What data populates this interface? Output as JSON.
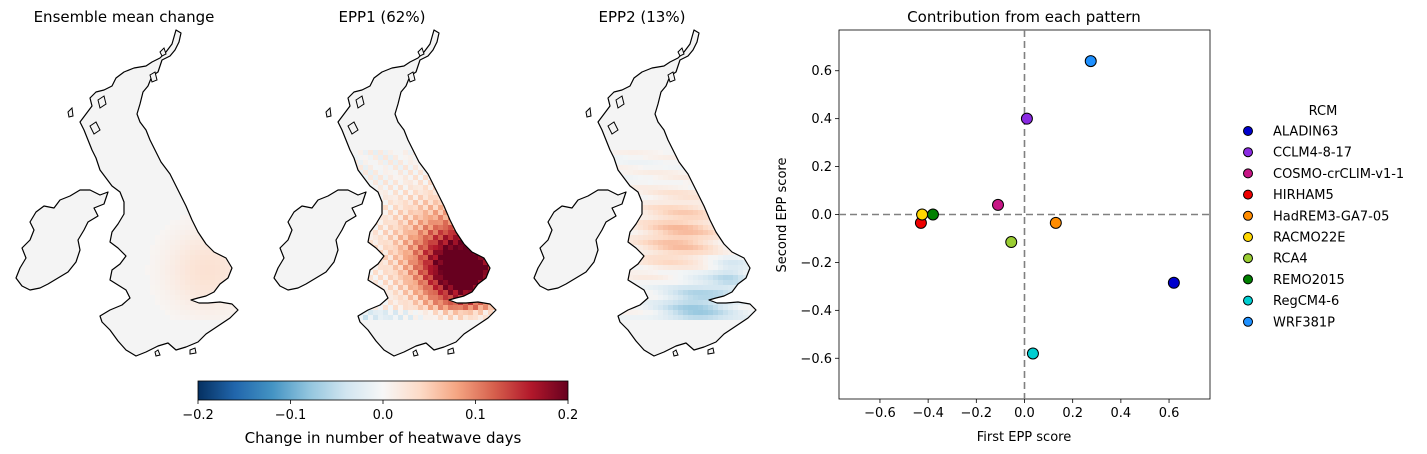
{
  "maps": [
    {
      "title": "Ensemble mean change",
      "pattern": "mean"
    },
    {
      "title": "EPP1 (62%)",
      "pattern": "epp1"
    },
    {
      "title": "EPP2 (13%)",
      "pattern": "epp2"
    }
  ],
  "colorbar": {
    "label": "Change in number of heatwave days",
    "ticks": [
      "−0.2",
      "−0.1",
      "0.0",
      "0.1",
      "0.2"
    ],
    "vmin": -0.2,
    "vmax": 0.2,
    "colormap": "RdBu_r",
    "colors": [
      "#053061",
      "#2166ac",
      "#4393c3",
      "#92c5de",
      "#d1e5f0",
      "#f7f7f7",
      "#fddbc7",
      "#f4a582",
      "#d6604d",
      "#b2182b",
      "#67001f"
    ]
  },
  "chart_data": {
    "type": "scatter",
    "title": "Contribution from each pattern",
    "xlabel": "First EPP score",
    "ylabel": "Second EPP score",
    "xlim": [
      -0.77,
      0.77
    ],
    "ylim": [
      -0.77,
      0.77
    ],
    "xticks": [
      -0.6,
      -0.4,
      -0.2,
      0.0,
      0.2,
      0.4,
      0.6
    ],
    "yticks": [
      -0.6,
      -0.4,
      -0.2,
      0.0,
      0.2,
      0.4,
      0.6
    ],
    "xtick_labels": [
      "−0.6",
      "−0.4",
      "−0.2",
      "0.0",
      "0.2",
      "0.4",
      "0.6"
    ],
    "ytick_labels": [
      "−0.6",
      "−0.4",
      "−0.2",
      "0.0",
      "0.2",
      "0.4",
      "0.6"
    ],
    "reference_lines": {
      "x": 0,
      "y": 0,
      "style": "dashed",
      "color": "#808080"
    },
    "legend": {
      "title": "RCM",
      "placement": "outside-right"
    },
    "series": [
      {
        "name": "ALADIN63",
        "color": "#0000cd",
        "x": 0.62,
        "y": -0.285
      },
      {
        "name": "CCLM4-8-17",
        "color": "#8a2be2",
        "x": 0.01,
        "y": 0.4
      },
      {
        "name": "COSMO-crCLIM-v1-1",
        "color": "#c71585",
        "x": -0.11,
        "y": 0.04
      },
      {
        "name": "HIRHAM5",
        "color": "#ee0000",
        "x": -0.43,
        "y": -0.035
      },
      {
        "name": "HadREM3-GA7-05",
        "color": "#ff8c00",
        "x": 0.13,
        "y": -0.035
      },
      {
        "name": "RACMO22E",
        "color": "#ffd700",
        "x": -0.425,
        "y": 0.0
      },
      {
        "name": "RCA4",
        "color": "#9acd32",
        "x": -0.055,
        "y": -0.115
      },
      {
        "name": "REMO2015",
        "color": "#008000",
        "x": -0.38,
        "y": 0.0
      },
      {
        "name": "RegCM4-6",
        "color": "#00ced1",
        "x": 0.035,
        "y": -0.58
      },
      {
        "name": "WRF381P",
        "color": "#1e90ff",
        "x": 0.275,
        "y": 0.64
      }
    ]
  }
}
